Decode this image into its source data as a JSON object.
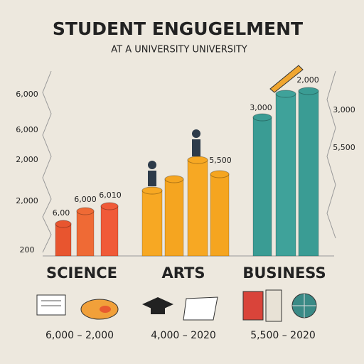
{
  "header": {
    "title": "STUDENT ENGUGELMENT",
    "subtitle": "AT A UNIVERSITY UNIVERSITY"
  },
  "left_axis_labels": [
    "6,000",
    "6,000",
    "2,000",
    "2,000",
    "200"
  ],
  "right_axis_labels": [
    "3,000",
    "5,500"
  ],
  "groups": [
    {
      "name": "SCIENCE",
      "bar_labels": [
        "6,00",
        "6,000",
        "6,010"
      ],
      "footer": "6,000 – 2,000"
    },
    {
      "name": "ARTS",
      "bar_labels": [
        "5,500"
      ],
      "footer": "4,000 – 2020"
    },
    {
      "name": "BUSINESS",
      "bar_labels": [
        "3,000",
        "2,000"
      ],
      "footer": "5,500 – 2020"
    }
  ]
}
